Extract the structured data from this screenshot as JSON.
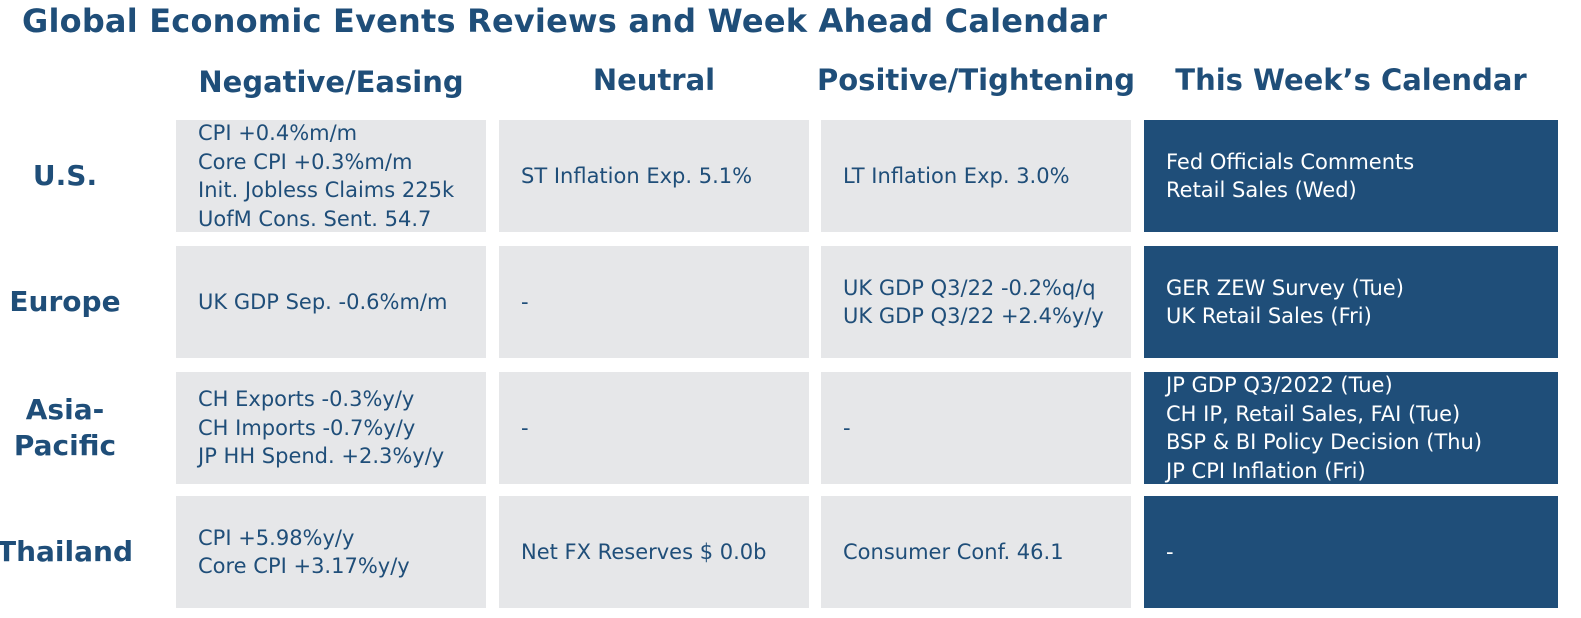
{
  "title": "Global Economic Events Reviews and Week Ahead Calendar",
  "columns": [
    "Negative/Easing",
    "Neutral",
    "Positive/Tightening",
    "This Week’s Calendar"
  ],
  "rows": [
    {
      "label": [
        "U.S."
      ],
      "negative": [
        "CPI +0.4%m/m",
        "Core CPI +0.3%m/m",
        "Init. Jobless Claims 225k",
        "UofM Cons. Sent. 54.7"
      ],
      "neutral": [
        "ST Inflation Exp. 5.1%"
      ],
      "positive": [
        "LT Inflation Exp. 3.0%"
      ],
      "calendar": [
        "Fed Officials Comments",
        "Retail Sales (Wed)"
      ]
    },
    {
      "label": [
        "Europe"
      ],
      "negative": [
        "UK GDP Sep. -0.6%m/m"
      ],
      "neutral": [
        "-"
      ],
      "positive": [
        "UK GDP Q3/22 -0.2%q/q",
        "UK GDP Q3/22 +2.4%y/y"
      ],
      "calendar": [
        "GER ZEW Survey (Tue)",
        "UK Retail Sales (Fri)"
      ]
    },
    {
      "label": [
        "Asia-",
        "Pacific"
      ],
      "negative": [
        "CH Exports -0.3%y/y",
        "CH Imports -0.7%y/y",
        "JP HH Spend. +2.3%y/y"
      ],
      "neutral": [
        "-"
      ],
      "positive": [
        "-"
      ],
      "calendar": [
        "JP GDP Q3/2022 (Tue)",
        "CH IP, Retail Sales, FAI (Tue)",
        "BSP & BI Policy Decision (Thu)",
        "JP CPI Inflation (Fri)"
      ]
    },
    {
      "label": [
        "Thailand"
      ],
      "negative": [
        "CPI +5.98%y/y",
        "Core CPI +3.17%y/y"
      ],
      "neutral": [
        "Net FX Reserves $ 0.0b"
      ],
      "positive": [
        "Consumer Conf. 46.1"
      ],
      "calendar": [
        "-"
      ]
    }
  ],
  "colors": {
    "primary": "#1f4e79",
    "cell_bg": "#e6e7e9",
    "calendar_bg": "#1f4e79",
    "calendar_text": "#ffffff"
  }
}
